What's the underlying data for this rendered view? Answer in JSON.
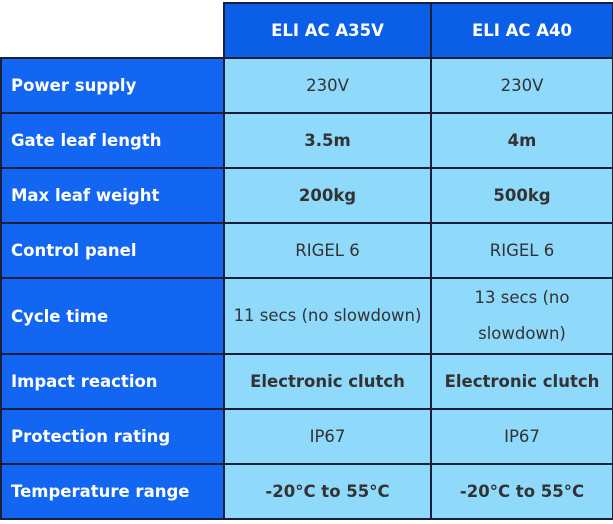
{
  "table": {
    "columns": [
      "ELI AC A35V",
      "ELI AC A40"
    ],
    "rows": [
      [
        "Power supply",
        "230V",
        "230V"
      ],
      [
        "Gate leaf length",
        "3.5m",
        "4m"
      ],
      [
        "Max leaf weight",
        "200kg",
        "500kg"
      ],
      [
        "Control panel",
        "RIGEL 6",
        "RIGEL 6"
      ],
      [
        "Cycle time",
        "11 secs (no slowdown)",
        "13 secs (no slowdown)"
      ],
      [
        "Impact reaction",
        "Electronic clutch",
        "Electronic clutch"
      ],
      [
        "Protection rating",
        "IP67",
        "IP67"
      ],
      [
        "Temperature range",
        "-20°C to 55°C",
        "-20°C to 55°C"
      ]
    ]
  }
}
